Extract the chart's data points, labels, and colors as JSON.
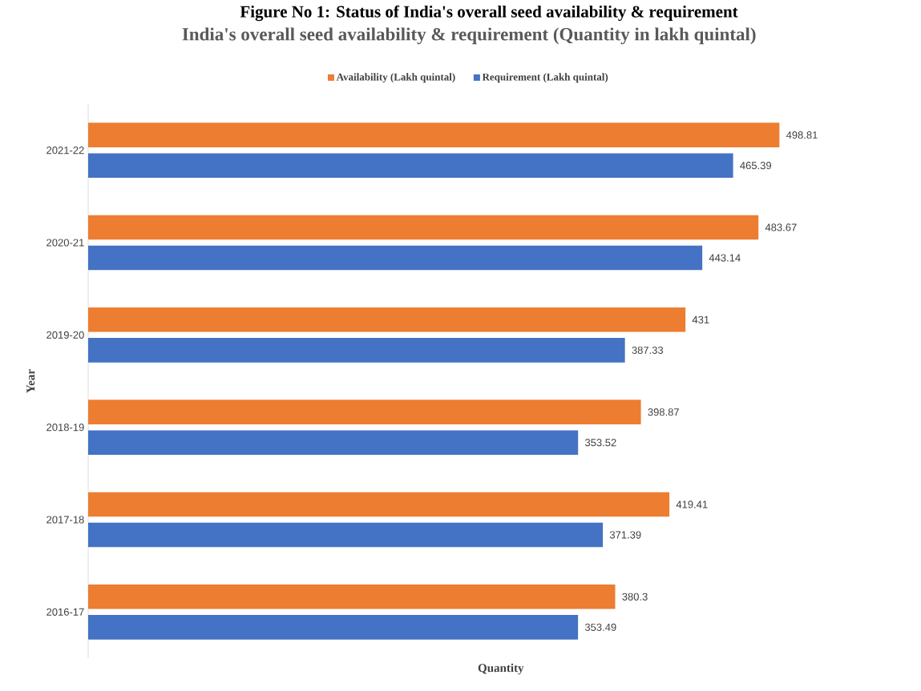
{
  "chart_data": {
    "type": "bar",
    "orientation": "horizontal",
    "title": "India's overall seed availability & requirement (Quantity in lakh quintal)",
    "annotations": [
      "Figure No 1: Status of India's overall seed availability & requirement"
    ],
    "xlabel": "Quantity",
    "ylabel": "Year",
    "categories": [
      "2021-22",
      "2020-21",
      "2019-20",
      "2018-19",
      "2017-18",
      "2016-17"
    ],
    "series": [
      {
        "name": "Availability (Lakh quintal)",
        "color": "#ed7d31",
        "values": [
          498.81,
          483.67,
          431,
          398.87,
          419.41,
          380.3
        ]
      },
      {
        "name": "Requirement (Lakh quintal)",
        "color": "#4472c4",
        "values": [
          465.39,
          443.14,
          387.33,
          353.52,
          371.39,
          353.49
        ]
      }
    ],
    "data_labels": true,
    "legend": "top",
    "tick_labels": "y"
  }
}
